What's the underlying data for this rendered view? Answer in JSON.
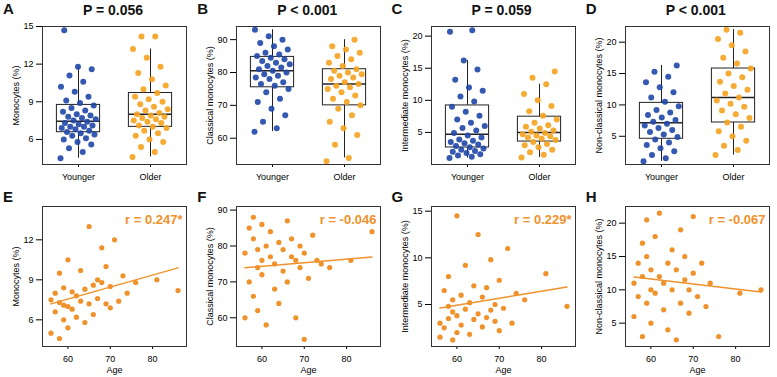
{
  "chart_data": [
    {
      "type": "box",
      "panel": "A",
      "title": "P = 0.056",
      "ylabel": "Monocytes (%)",
      "categories": [
        "Younger",
        "Older"
      ],
      "colors": [
        "#1f47a8",
        "#f5a21e"
      ],
      "values": [
        [
          4.5,
          5.0,
          5.3,
          5.6,
          5.8,
          6.0,
          6.1,
          6.3,
          6.4,
          6.5,
          6.6,
          6.7,
          6.8,
          6.9,
          7.0,
          7.0,
          7.1,
          7.2,
          7.3,
          7.4,
          7.5,
          7.6,
          7.7,
          7.8,
          7.9,
          8.0,
          8.2,
          8.3,
          8.5,
          8.7,
          8.9,
          9.1,
          9.4,
          9.8,
          10.2,
          10.6,
          11.1,
          11.6,
          11.8,
          14.7
        ],
        [
          4.6,
          5.0,
          5.4,
          5.8,
          6.0,
          6.3,
          6.5,
          6.7,
          6.9,
          7.0,
          7.1,
          7.3,
          7.4,
          7.5,
          7.6,
          7.7,
          7.8,
          7.9,
          8.0,
          8.1,
          8.3,
          8.4,
          8.6,
          8.8,
          9.0,
          9.2,
          9.4,
          9.7,
          10.0,
          10.3,
          10.8,
          11.3,
          11.8,
          12.5,
          13.2,
          14.2,
          14.2
        ]
      ],
      "ylim": [
        4,
        15
      ],
      "yticks": [
        6,
        9,
        12,
        15
      ]
    },
    {
      "type": "box",
      "panel": "B",
      "title": "P < 0.001",
      "ylabel": "Classical monocytes (%)",
      "categories": [
        "Younger",
        "Older"
      ],
      "colors": [
        "#1f47a8",
        "#f5a21e"
      ],
      "values": [
        [
          62,
          63,
          65,
          67,
          69,
          71,
          72,
          74,
          75,
          76,
          76.5,
          77,
          78,
          78.5,
          79,
          79.5,
          80,
          80.5,
          81,
          81.5,
          82,
          82.5,
          83,
          83.5,
          84,
          84.5,
          85,
          85.5,
          86,
          87,
          88,
          89,
          90,
          91,
          93
        ],
        [
          53,
          54,
          58,
          61,
          63,
          65,
          67,
          69,
          70,
          71,
          72,
          73,
          74,
          75,
          75.5,
          76,
          76.5,
          77,
          78,
          78.5,
          79,
          79.5,
          80,
          80.5,
          81,
          82,
          83,
          84,
          85,
          86,
          87,
          88,
          90
        ]
      ],
      "ylim": [
        52,
        94
      ],
      "yticks": [
        60,
        70,
        80,
        90
      ]
    },
    {
      "type": "box",
      "panel": "C",
      "title": "P = 0.059",
      "ylabel": "Intermediate monocytes (%)",
      "categories": [
        "Younger",
        "Older"
      ],
      "colors": [
        "#1f47a8",
        "#f5a21e"
      ],
      "values": [
        [
          1.0,
          1.2,
          1.4,
          1.6,
          1.8,
          2.0,
          2.1,
          2.3,
          2.5,
          2.7,
          2.9,
          3.1,
          3.3,
          3.5,
          3.7,
          3.9,
          4.2,
          4.5,
          4.9,
          5.3,
          5.7,
          6.0,
          6.5,
          7.0,
          7.6,
          8.2,
          9.0,
          9.8,
          10.6,
          11.5,
          12.0,
          13.2,
          14.8,
          16.2,
          20.7,
          20.9
        ],
        [
          1.1,
          1.5,
          1.9,
          2.3,
          2.7,
          3.0,
          3.2,
          3.5,
          3.8,
          4.0,
          4.2,
          4.4,
          4.5,
          4.7,
          4.9,
          5.1,
          5.3,
          5.6,
          5.9,
          6.1,
          6.5,
          7.0,
          7.6,
          8.3,
          9.1,
          10.0,
          11.0,
          12.5,
          13.5,
          14.5
        ]
      ],
      "ylim": [
        0,
        21.5
      ],
      "yticks": [
        5,
        10,
        15,
        20
      ]
    },
    {
      "type": "box",
      "panel": "D",
      "title": "P < 0.001",
      "ylabel": "Non-classical monocytes (%)",
      "categories": [
        "Younger",
        "Older"
      ],
      "colors": [
        "#1f47a8",
        "#f5a21e"
      ],
      "values": [
        [
          1.0,
          1.5,
          2.0,
          2.6,
          3.1,
          3.6,
          4.0,
          4.5,
          4.9,
          5.3,
          5.7,
          6.0,
          6.3,
          6.7,
          7.0,
          7.3,
          7.6,
          8.0,
          8.4,
          8.8,
          9.2,
          9.8,
          10.5,
          11.2,
          12.0,
          12.8,
          13.6,
          14.5,
          15.3,
          16.3
        ],
        [
          2.0,
          2.8,
          3.5,
          4.3,
          5.0,
          5.8,
          6.5,
          7.2,
          7.9,
          8.5,
          9.1,
          9.7,
          10.2,
          10.7,
          11.2,
          11.8,
          12.4,
          13.0,
          13.7,
          14.4,
          15.0,
          15.8,
          16.6,
          17.5,
          18.5,
          19.5,
          20.5,
          21.5,
          22.0
        ]
      ],
      "ylim": [
        0.5,
        22.5
      ],
      "yticks": [
        5,
        10,
        15,
        20
      ]
    },
    {
      "type": "scatter",
      "panel": "E",
      "annotation": "r = 0.247*",
      "xlabel": "Age",
      "ylabel": "Monocytes (%)",
      "color": "#f0922b",
      "x": [
        56,
        56,
        57,
        57,
        58,
        58,
        58,
        59,
        59,
        59,
        60,
        60,
        60,
        61,
        61,
        62,
        62,
        63,
        63,
        64,
        64,
        65,
        65,
        66,
        66,
        67,
        67,
        68,
        68,
        69,
        69,
        70,
        70,
        71,
        72,
        73,
        74,
        76,
        81,
        86
      ],
      "values": [
        7.5,
        5.0,
        8.0,
        6.6,
        7.3,
        4.6,
        9.5,
        6.0,
        8.4,
        7.1,
        7.0,
        10.5,
        5.4,
        8.1,
        6.8,
        7.8,
        6.2,
        9.7,
        7.4,
        8.3,
        5.8,
        13.0,
        7.2,
        8.6,
        6.4,
        9.0,
        7.6,
        11.4,
        8.8,
        7.2,
        10.0,
        8.5,
        6.9,
        12.0,
        7.4,
        9.3,
        8.0,
        8.8,
        9.0,
        8.2
      ],
      "xlim": [
        54,
        88
      ],
      "xticks": [
        60,
        70,
        80
      ],
      "ylim": [
        4,
        14.5
      ],
      "yticks": [
        6,
        9,
        12
      ]
    },
    {
      "type": "scatter",
      "panel": "F",
      "annotation": "r = -0.046",
      "xlabel": "Age",
      "ylabel": "Classical monocytes (%)",
      "color": "#f0922b",
      "x": [
        56,
        56,
        57,
        57,
        58,
        58,
        58,
        59,
        59,
        59,
        60,
        60,
        60,
        61,
        61,
        62,
        62,
        63,
        63,
        64,
        64,
        65,
        65,
        66,
        66,
        67,
        67,
        68,
        68,
        69,
        69,
        70,
        70,
        71,
        72,
        73,
        74,
        76,
        81,
        86
      ],
      "values": [
        78,
        60,
        85,
        70,
        82,
        66,
        88,
        74,
        79,
        62,
        76,
        86,
        72,
        80,
        58,
        77,
        84,
        68,
        75,
        81,
        64,
        79,
        73,
        87,
        70,
        77,
        82,
        60,
        76,
        74,
        80,
        78,
        54,
        71,
        83,
        76,
        75,
        74,
        76,
        84
      ],
      "xlim": [
        54,
        88
      ],
      "xticks": [
        60,
        70,
        80
      ],
      "ylim": [
        52,
        91
      ],
      "yticks": [
        60,
        70,
        80,
        90
      ]
    },
    {
      "type": "scatter",
      "panel": "G",
      "annotation": "r = 0.229*",
      "xlabel": "Age",
      "ylabel": "Intermediate monocytes (%)",
      "color": "#f0922b",
      "x": [
        56,
        56,
        57,
        57,
        58,
        58,
        58,
        59,
        59,
        59,
        60,
        60,
        60,
        61,
        61,
        62,
        62,
        63,
        63,
        64,
        64,
        65,
        65,
        66,
        66,
        67,
        67,
        68,
        68,
        69,
        69,
        70,
        70,
        71,
        72,
        73,
        74,
        76,
        81,
        86
      ],
      "values": [
        3.0,
        1.5,
        6.5,
        2.5,
        4.8,
        8.0,
        3.5,
        1.2,
        5.5,
        4.2,
        2.0,
        14.5,
        3.8,
        6.0,
        2.8,
        9.2,
        4.5,
        1.8,
        5.2,
        3.4,
        7.0,
        4.0,
        12.5,
        2.6,
        5.8,
        3.6,
        6.8,
        4.4,
        9.8,
        3.2,
        5.0,
        2.2,
        7.6,
        4.6,
        11.0,
        3.0,
        6.2,
        5.5,
        8.3,
        4.8
      ],
      "xlim": [
        54,
        88
      ],
      "xticks": [
        60,
        70,
        80
      ],
      "ylim": [
        0.5,
        15.5
      ],
      "yticks": [
        5,
        10,
        15
      ]
    },
    {
      "type": "scatter",
      "panel": "H",
      "annotation": "r = -0.067",
      "xlabel": "Age",
      "ylabel": "Non-classical monocytes (%)",
      "color": "#f0922b",
      "x": [
        56,
        56,
        57,
        57,
        58,
        58,
        58,
        59,
        59,
        59,
        60,
        60,
        60,
        61,
        61,
        62,
        62,
        63,
        63,
        64,
        64,
        65,
        65,
        66,
        66,
        67,
        67,
        68,
        68,
        69,
        69,
        70,
        70,
        71,
        72,
        73,
        74,
        76,
        81,
        86
      ],
      "values": [
        11,
        6,
        14,
        9,
        17,
        3,
        12,
        20.5,
        8,
        15,
        10,
        13,
        5,
        18,
        9.5,
        12,
        21.5,
        7,
        11,
        14,
        4,
        16,
        10,
        13,
        2.5,
        19,
        8,
        11.5,
        15,
        6.5,
        10,
        12.5,
        21,
        9,
        14,
        7.5,
        11,
        3,
        9.5,
        10
      ],
      "xlim": [
        54,
        88
      ],
      "xticks": [
        60,
        70,
        80
      ],
      "ylim": [
        1.5,
        22.5
      ],
      "yticks": [
        5,
        10,
        15,
        20
      ]
    }
  ]
}
